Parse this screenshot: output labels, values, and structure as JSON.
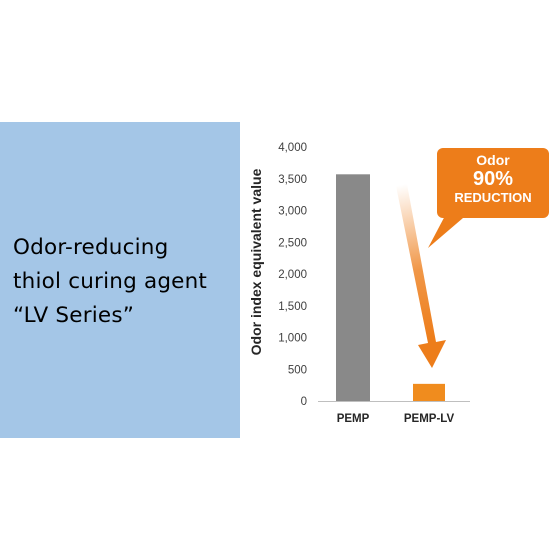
{
  "headline": {
    "lines": [
      "Odor-reducing",
      "thiol curing agent",
      "“LV Series”"
    ]
  },
  "callout": {
    "line1": "Odor",
    "line2": "90%",
    "line3": "REDUCTION"
  },
  "colors": {
    "panel": "#a4c6e7",
    "bar_pemp": "#898989",
    "bar_pemp_lv": "#f08c1e",
    "accent": "#ed7d1a"
  },
  "chart_data": {
    "type": "bar",
    "categories": [
      "PEMP",
      "PEMP-LV"
    ],
    "values": [
      3570,
      270
    ],
    "title": "",
    "xlabel": "",
    "ylabel": "Odor index equivalent value",
    "ylim": [
      0,
      4000
    ],
    "yticks": [
      "0",
      "500",
      "1,000",
      "1,500",
      "2,000",
      "2,500",
      "3,000",
      "3,500",
      "4,000"
    ],
    "grid": false
  }
}
